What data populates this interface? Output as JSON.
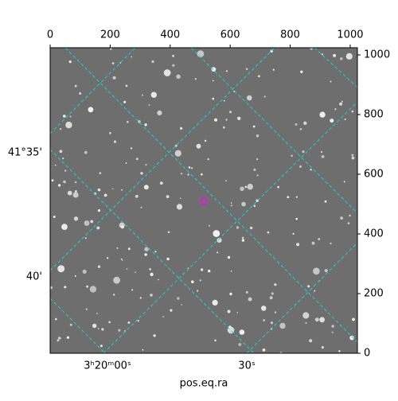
{
  "chart_data": {
    "type": "image",
    "xlabel": "pos.eq.ra",
    "xlim": [
      0,
      1024
    ],
    "xticks": [
      0,
      200,
      400,
      600,
      800,
      1000
    ],
    "ylim": [
      0,
      1024
    ],
    "yticks": [
      0,
      200,
      400,
      600,
      800,
      1000
    ],
    "ra_labels": [
      "3ʰ20ᵐ00ˢ",
      "30ˢ"
    ],
    "dec_labels": [
      "41°35'",
      "40'"
    ],
    "grid_color": "#20d0d0",
    "marker_color": "#ff00ff"
  }
}
